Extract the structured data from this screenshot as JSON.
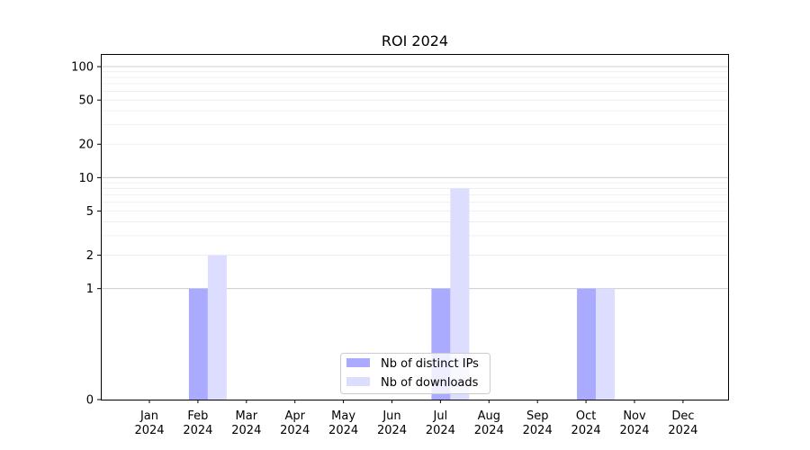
{
  "chart_data": {
    "type": "bar",
    "title": "ROI 2024",
    "xlabel": "",
    "ylabel": "",
    "y_scale": "symlog",
    "ylim": [
      0,
      130
    ],
    "yticks": [
      0,
      1,
      2,
      5,
      10,
      20,
      50,
      100
    ],
    "grid": "horizontal",
    "legend_position": "lower center",
    "categories": [
      {
        "month": "Jan",
        "year": "2024"
      },
      {
        "month": "Feb",
        "year": "2024"
      },
      {
        "month": "Mar",
        "year": "2024"
      },
      {
        "month": "Apr",
        "year": "2024"
      },
      {
        "month": "May",
        "year": "2024"
      },
      {
        "month": "Jun",
        "year": "2024"
      },
      {
        "month": "Jul",
        "year": "2024"
      },
      {
        "month": "Aug",
        "year": "2024"
      },
      {
        "month": "Sep",
        "year": "2024"
      },
      {
        "month": "Oct",
        "year": "2024"
      },
      {
        "month": "Nov",
        "year": "2024"
      },
      {
        "month": "Dec",
        "year": "2024"
      }
    ],
    "series": [
      {
        "name": "Nb of distinct IPs",
        "color": "#aaaaff",
        "values": [
          0,
          1,
          0,
          0,
          0,
          0,
          1,
          0,
          0,
          1,
          0,
          0
        ]
      },
      {
        "name": "Nb of downloads",
        "color": "#ddddff",
        "values": [
          0,
          2,
          0,
          0,
          0,
          0,
          8,
          0,
          0,
          1,
          0,
          0
        ]
      }
    ]
  }
}
